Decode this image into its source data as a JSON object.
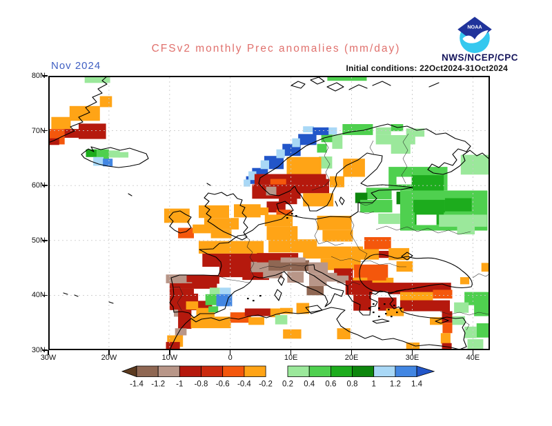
{
  "header": {
    "title": "CFSv2 monthly Prec anomalies (mm/day)",
    "date_label": "Nov 2024",
    "init_label": "Initial conditions: 22Oct2024-31Oct2024",
    "agency": "NWS/NCEP/CPC",
    "logo_text": "NOAA"
  },
  "axes": {
    "lat_ticks": [
      {
        "label": "80N",
        "lat": 80
      },
      {
        "label": "70N",
        "lat": 70
      },
      {
        "label": "60N",
        "lat": 60
      },
      {
        "label": "50N",
        "lat": 50
      },
      {
        "label": "40N",
        "lat": 40
      },
      {
        "label": "30N",
        "lat": 30
      }
    ],
    "lon_ticks": [
      {
        "label": "30W",
        "lon": -30
      },
      {
        "label": "20W",
        "lon": -20
      },
      {
        "label": "10W",
        "lon": -10
      },
      {
        "label": "0",
        "lon": 0
      },
      {
        "label": "10E",
        "lon": 10
      },
      {
        "label": "20E",
        "lon": 20
      },
      {
        "label": "30E",
        "lon": 30
      },
      {
        "label": "40E",
        "lon": 40
      }
    ],
    "grid_lons": [
      -20,
      -10,
      0,
      10,
      20,
      30,
      40
    ],
    "grid_lats": [
      70,
      60,
      50,
      40
    ]
  },
  "chart_data": {
    "type": "heatmap",
    "title": "CFSv2 monthly Prec anomalies",
    "units": "mm/day",
    "lon_range": [
      -30,
      42.8
    ],
    "lat_range": [
      30,
      80
    ],
    "legend": {
      "labels": [
        "-1.4",
        "-1.2",
        "-1",
        "-0.8",
        "-0.6",
        "-0.4",
        "-0.2",
        "0.2",
        "0.4",
        "0.6",
        "0.8",
        "1",
        "1.2",
        "1.4"
      ],
      "segment_colors": [
        "#8f6753",
        "#b89688",
        "#b5190d",
        "#cb2a0e",
        "#f4570c",
        "#ffa416",
        "#9be89b",
        "#4fd04f",
        "#1dac1d",
        "#0d860d",
        "#a9d8f6",
        "#4286e2"
      ],
      "arrow_left_color": "#5c3b20",
      "arrow_right_color": "#2256c9"
    },
    "palette": {
      "bn": "#8f6753",
      "tn": "#b89688",
      "rd": "#b5190d",
      "ro": "#f4570c",
      "or": "#ffa416",
      "gl": "#9be89b",
      "gm": "#4fd04f",
      "gg": "#1dac1d",
      "gd": "#0d860d",
      "bl": "#a9d8f6",
      "bb": "#4286e2",
      "bd": "#2256c9",
      "wh": "#ffffff"
    },
    "cells": [
      [
        "gl",
        -24,
        80,
        4.2,
        1.3
      ],
      [
        "or",
        -21.5,
        76.3,
        2,
        2
      ],
      [
        "or",
        -26.5,
        74.5,
        5,
        2.7
      ],
      [
        "or",
        -29.5,
        72.5,
        3.2,
        2.2
      ],
      [
        "rd",
        -25,
        71.3,
        4.5,
        2.8
      ],
      [
        "rd",
        -27.5,
        70.3,
        2.7,
        1.6
      ],
      [
        "ro",
        -30,
        70.3,
        2.7,
        2.8
      ],
      [
        "rd",
        -30,
        68.6,
        1.8,
        1.2
      ],
      [
        "gg",
        -23.8,
        66.6,
        1.8,
        1.4
      ],
      [
        "gm",
        -22,
        66.6,
        2,
        1.9
      ],
      [
        "gl",
        -20,
        66.4,
        1.8,
        1.3
      ],
      [
        "gl",
        -18.4,
        66.1,
        1.6,
        1
      ],
      [
        "bl",
        -22.6,
        65.2,
        1.7,
        1.6
      ],
      [
        "bb",
        -21,
        64.9,
        1.6,
        1.4
      ],
      [
        "gm",
        16,
        80,
        6.5,
        0.9
      ],
      [
        "gm",
        18.5,
        71.2,
        5,
        2
      ],
      [
        "gl",
        24,
        70.6,
        2.5,
        1.4
      ],
      [
        "gl",
        29,
        70.4,
        3,
        1.5
      ],
      [
        "gm",
        26.5,
        71.2,
        2,
        1.3
      ],
      [
        "gl",
        24,
        69.2,
        6.5,
        1.7
      ],
      [
        "gl",
        26.5,
        67.7,
        3.2,
        1.9
      ],
      [
        "gm",
        15,
        69.3,
        2,
        1.4
      ],
      [
        "gl",
        16.8,
        69.3,
        1.7,
        2.6
      ],
      [
        "gm",
        14.3,
        67.6,
        1.6,
        1.6
      ],
      [
        "gl",
        14.6,
        65.3,
        2.2,
        2.2
      ],
      [
        "gl",
        38,
        65.6,
        4.6,
        3.6
      ],
      [
        "bl",
        12,
        70.8,
        1.8,
        1.1
      ],
      [
        "bl",
        15.8,
        70.6,
        1.8,
        1.3
      ],
      [
        "bd",
        13.6,
        70.6,
        2.6,
        1.4
      ],
      [
        "bd",
        11.2,
        69.4,
        3,
        2
      ],
      [
        "bd",
        8.6,
        67.6,
        3,
        2.2
      ],
      [
        "bd",
        5.6,
        65.4,
        3.2,
        2.4
      ],
      [
        "bd",
        3.6,
        63.2,
        2.6,
        2.1
      ],
      [
        "bd",
        2.6,
        61.7,
        1.6,
        1.4
      ],
      [
        "bl",
        10.2,
        68.6,
        1.3,
        1.6
      ],
      [
        "bl",
        7.6,
        66.6,
        1.4,
        1.6
      ],
      [
        "bl",
        5,
        64.6,
        1.4,
        1.6
      ],
      [
        "bl",
        3,
        62.6,
        1.3,
        1.6
      ],
      [
        "bl",
        2.2,
        61.1,
        1.1,
        1.3
      ],
      [
        "or",
        9.3,
        65.2,
        5.7,
        3.1
      ],
      [
        "or",
        18.6,
        64.9,
        3.6,
        3.3
      ],
      [
        "rd",
        4,
        62.1,
        11.8,
        1.9
      ],
      [
        "ro",
        6.6,
        61.2,
        2.6,
        1.6
      ],
      [
        "rd",
        3.6,
        60.2,
        8,
        2.6
      ],
      [
        "rd",
        11,
        61.2,
        5.3,
        2.6
      ],
      [
        "tn",
        5.9,
        59.8,
        1.7,
        1.6
      ],
      [
        "or",
        16.4,
        61.7,
        2.4,
        2
      ],
      [
        "or",
        12,
        58.6,
        5,
        2.4
      ],
      [
        "rd",
        8,
        58,
        3,
        1.4
      ],
      [
        "rd",
        6,
        57.1,
        3.1,
        2
      ],
      [
        "ro",
        7.6,
        55.6,
        2.6,
        1.6
      ],
      [
        "or",
        4.6,
        56,
        1.7,
        1.4
      ],
      [
        "or",
        0.6,
        56.6,
        4.4,
        2.4
      ],
      [
        "or",
        -10.9,
        55.8,
        4.2,
        2.6
      ],
      [
        "ro",
        -8.6,
        52.3,
        2.6,
        1.9
      ],
      [
        "or",
        -6.2,
        52.9,
        3,
        1.6
      ],
      [
        "or",
        -5.2,
        56.4,
        5,
        2.3
      ],
      [
        "or",
        -4.3,
        54.1,
        5.7,
        2.1
      ],
      [
        "or",
        -3.2,
        52,
        3.4,
        1.6
      ],
      [
        "or",
        -5.2,
        49.9,
        10.7,
        2.3
      ],
      [
        "rd",
        -4.6,
        47.6,
        10.3,
        2.4
      ],
      [
        "rd",
        -1.8,
        45.2,
        5.4,
        1.9
      ],
      [
        "rd",
        2,
        44.4,
        4.4,
        1.6
      ],
      [
        "tn",
        3.4,
        46.1,
        3,
        1.9
      ],
      [
        "or",
        5.7,
        54.7,
        4.6,
        2.1
      ],
      [
        "or",
        6,
        52.6,
        5.1,
        2.5
      ],
      [
        "or",
        14.3,
        54.5,
        5.7,
        2.6
      ],
      [
        "or",
        15.2,
        51.9,
        5,
        2.1
      ],
      [
        "or",
        6.3,
        50.2,
        8,
        2.4
      ],
      [
        "or",
        12,
        48.9,
        9.9,
        2.2
      ],
      [
        "or",
        14.9,
        46.7,
        6.6,
        2.1
      ],
      [
        "ro",
        22.1,
        50.6,
        4.4,
        2.2
      ],
      [
        "or",
        20.1,
        48.4,
        4.4,
        1.9
      ],
      [
        "rd",
        24.5,
        48.1,
        2.1,
        1.3
      ],
      [
        "or",
        26.1,
        48.6,
        3.4,
        2.2
      ],
      [
        "or",
        27.4,
        46.2,
        2.7,
        1.9
      ],
      [
        "ro",
        20.4,
        45.6,
        5.6,
        2.4
      ],
      [
        "or",
        20,
        43.2,
        6.9,
        1.8
      ],
      [
        "ro",
        22.6,
        44.1,
        3.1,
        1.4
      ],
      [
        "rd",
        17.1,
        44.9,
        3.1,
        2.2
      ],
      [
        "tn",
        17.6,
        43.6,
        1.9,
        1.4
      ],
      [
        "rd",
        19,
        42.7,
        4.4,
        2.6
      ],
      [
        "rd",
        23.2,
        42.3,
        3.1,
        1.6
      ],
      [
        "rd",
        20.3,
        40.1,
        2.9,
        2.9
      ],
      [
        "rd",
        4.4,
        47.7,
        6.8,
        1.7
      ],
      [
        "bn",
        6.3,
        46.4,
        6.7,
        2
      ],
      [
        "tn",
        8.3,
        46.9,
        4.1,
        0.9
      ],
      [
        "tn",
        5.4,
        44.5,
        3.2,
        1.4
      ],
      [
        "tn",
        9.4,
        44.3,
        2.7,
        2
      ],
      [
        "tn",
        12.9,
        46,
        3.2,
        2.1
      ],
      [
        "tn",
        13,
        43.9,
        2.9,
        2.2
      ],
      [
        "tn",
        15.7,
        44.1,
        1.9,
        1.6
      ],
      [
        "bn",
        12.6,
        41.7,
        2.8,
        1.7
      ],
      [
        "tn",
        -10.6,
        43.8,
        3.4,
        1.6
      ],
      [
        "rd",
        -7.2,
        43.7,
        5.4,
        1.6
      ],
      [
        "tn",
        -8,
        42.4,
        1.7,
        1.3
      ],
      [
        "rd",
        -10,
        42.2,
        7.8,
        1
      ],
      [
        "rd",
        -10,
        41.2,
        4,
        0.9
      ],
      [
        "rd",
        -10,
        40.3,
        4.7,
        3
      ],
      [
        "rd",
        -7,
        39,
        4,
        1.7
      ],
      [
        "or",
        -7.3,
        38.9,
        2,
        1.5
      ],
      [
        "or",
        -5.6,
        37.7,
        3,
        1.6
      ],
      [
        "gl",
        -3.4,
        41.4,
        1.7,
        1.2
      ],
      [
        "bl",
        -1.7,
        41.4,
        1.8,
        1.2
      ],
      [
        "gm",
        -4.1,
        40.2,
        1.8,
        2
      ],
      [
        "bb",
        -2.3,
        40.2,
        2.6,
        2.2
      ],
      [
        "gm",
        -3.6,
        38,
        1.6,
        1.1
      ],
      [
        "tn",
        -9.3,
        37.4,
        2,
        1.3
      ],
      [
        "rd",
        -8.6,
        37.4,
        2.2,
        3.5
      ],
      [
        "tn",
        -9.1,
        34,
        1.9,
        1.3
      ],
      [
        "or",
        -10.4,
        32.7,
        2.6,
        2.1
      ],
      [
        "rd",
        -10.6,
        31.5,
        2.3,
        1.5
      ],
      [
        "or",
        -6.5,
        36.1,
        6.6,
        2.1
      ],
      [
        "ro",
        0,
        36.9,
        3.4,
        1.9
      ],
      [
        "rd",
        2.4,
        37.6,
        5.4,
        1.4
      ],
      [
        "or",
        3,
        36,
        2.6,
        1.4
      ],
      [
        "or",
        6.6,
        37.6,
        1.6,
        1.6
      ],
      [
        "or",
        8.2,
        37.7,
        2.1,
        1.1
      ],
      [
        "gl",
        7.4,
        36.4,
        2,
        1.7
      ],
      [
        "or",
        10.9,
        38.6,
        2.1,
        2
      ],
      [
        "or",
        8.7,
        33.8,
        3,
        1.7
      ],
      [
        "or",
        17.6,
        34,
        2.2,
        2
      ],
      [
        "or",
        29,
        31.4,
        2.2,
        1.4
      ],
      [
        "rd",
        26,
        42.3,
        10.4,
        2.1
      ],
      [
        "ro",
        33.4,
        41,
        3.2,
        1.6
      ],
      [
        "or",
        28,
        40.6,
        5.4,
        1.7
      ],
      [
        "rd",
        24.4,
        39.6,
        3,
        2.4
      ],
      [
        "rd",
        28,
        39.1,
        8.2,
        2
      ],
      [
        "or",
        25.7,
        37.6,
        2.9,
        1.4
      ],
      [
        "or",
        32.9,
        36,
        2.3,
        1.4
      ],
      [
        "rd",
        34.9,
        37.1,
        1.7,
        2.1
      ],
      [
        "ro",
        35,
        35,
        1.6,
        1.9
      ],
      [
        "or",
        34.7,
        33.1,
        1.6,
        1.9
      ],
      [
        "rd",
        34.9,
        31.3,
        1.6,
        1.3
      ],
      [
        "or",
        37.9,
        43.3,
        1.5,
        1.3
      ],
      [
        "or",
        41.4,
        45.9,
        1.5,
        1.6
      ],
      [
        "gm",
        38.6,
        40.6,
        4.2,
        2.4
      ],
      [
        "gl",
        36.9,
        38.7,
        2.4,
        1.9
      ],
      [
        "gm",
        40.2,
        38.6,
        2.6,
        2.4
      ],
      [
        "gl",
        36.6,
        36.2,
        2.1,
        1.6
      ],
      [
        "gm",
        40.6,
        34.9,
        2,
        2.6
      ],
      [
        "gl",
        38.6,
        34.3,
        2,
        2.1
      ],
      [
        "gl",
        39.1,
        32,
        2.6,
        1.9
      ],
      [
        "gm",
        22.4,
        59.6,
        4.2,
        2.1
      ],
      [
        "gd",
        20.6,
        58.7,
        2,
        1.9
      ],
      [
        "gm",
        21.4,
        57.4,
        5.3,
        2.3
      ],
      [
        "gl",
        24.4,
        54.9,
        3.6,
        1.9
      ],
      [
        "gd",
        27.4,
        58.9,
        3.6,
        2.3
      ],
      [
        "gm",
        26.1,
        63.4,
        9.7,
        4.3
      ],
      [
        "gg",
        29.9,
        61.9,
        5.3,
        2.9
      ],
      [
        "wh",
        27.4,
        61.6,
        2.5,
        1.4
      ],
      [
        "gm",
        28,
        59.1,
        14.4,
        7.3
      ],
      [
        "gg",
        30.2,
        57.4,
        5.2,
        2.3
      ],
      [
        "gg",
        30.4,
        55.6,
        4.8,
        2.7
      ],
      [
        "gg",
        35.4,
        57.7,
        4.4,
        2.4
      ],
      [
        "wh",
        30.7,
        54.7,
        3.3,
        1.9
      ],
      [
        "gl",
        34.4,
        54.7,
        7.9,
        2.2
      ],
      [
        "gl",
        37.4,
        53.2,
        2.9,
        2.1
      ]
    ]
  }
}
